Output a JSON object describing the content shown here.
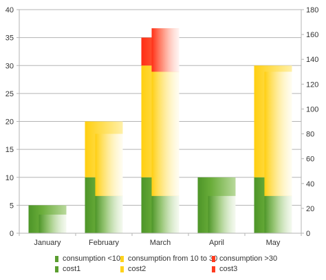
{
  "chart_data": {
    "type": "bar",
    "categories": [
      "January",
      "February",
      "March",
      "April",
      "May"
    ],
    "title": "",
    "xlabel": "",
    "ylabel": "",
    "grid": true,
    "legend_position": "bottom",
    "y_left": {
      "min": 0,
      "max": 40,
      "ticks": [
        "0",
        "5",
        "10",
        "15",
        "20",
        "25",
        "30",
        "35",
        "40"
      ]
    },
    "y_right": {
      "min": 0,
      "max": 180,
      "ticks": [
        "0",
        "20",
        "40",
        "60",
        "80",
        "100",
        "120",
        "140",
        "160",
        "180"
      ]
    },
    "stacked_series_left_axis": [
      {
        "name": "consumption <10",
        "color": "#5a9e2f",
        "values": [
          5,
          10,
          10,
          10,
          10
        ]
      },
      {
        "name": "consumption from 10 to 30",
        "color": "#ffd21a",
        "values": [
          0,
          10,
          20,
          0,
          20
        ]
      },
      {
        "name": "consumption >30",
        "color": "#ff3b1f",
        "values": [
          0,
          0,
          5,
          0,
          0
        ]
      }
    ],
    "stacked_series_right_axis": [
      {
        "name": "cost1",
        "color": "#5a9e2f",
        "values": [
          15,
          30,
          30,
          30,
          30
        ]
      },
      {
        "name": "cost2",
        "color": "#ffd21a",
        "values": [
          0,
          50,
          100,
          0,
          100
        ]
      },
      {
        "name": "cost3",
        "color": "#ff3b1f",
        "values": [
          0,
          0,
          35,
          0,
          0
        ]
      }
    ]
  },
  "legend": {
    "row1": [
      "consumption <10",
      "consumption from 10 to 30",
      "consumption >30"
    ],
    "row2": [
      "cost1",
      "cost2",
      "cost3"
    ]
  }
}
